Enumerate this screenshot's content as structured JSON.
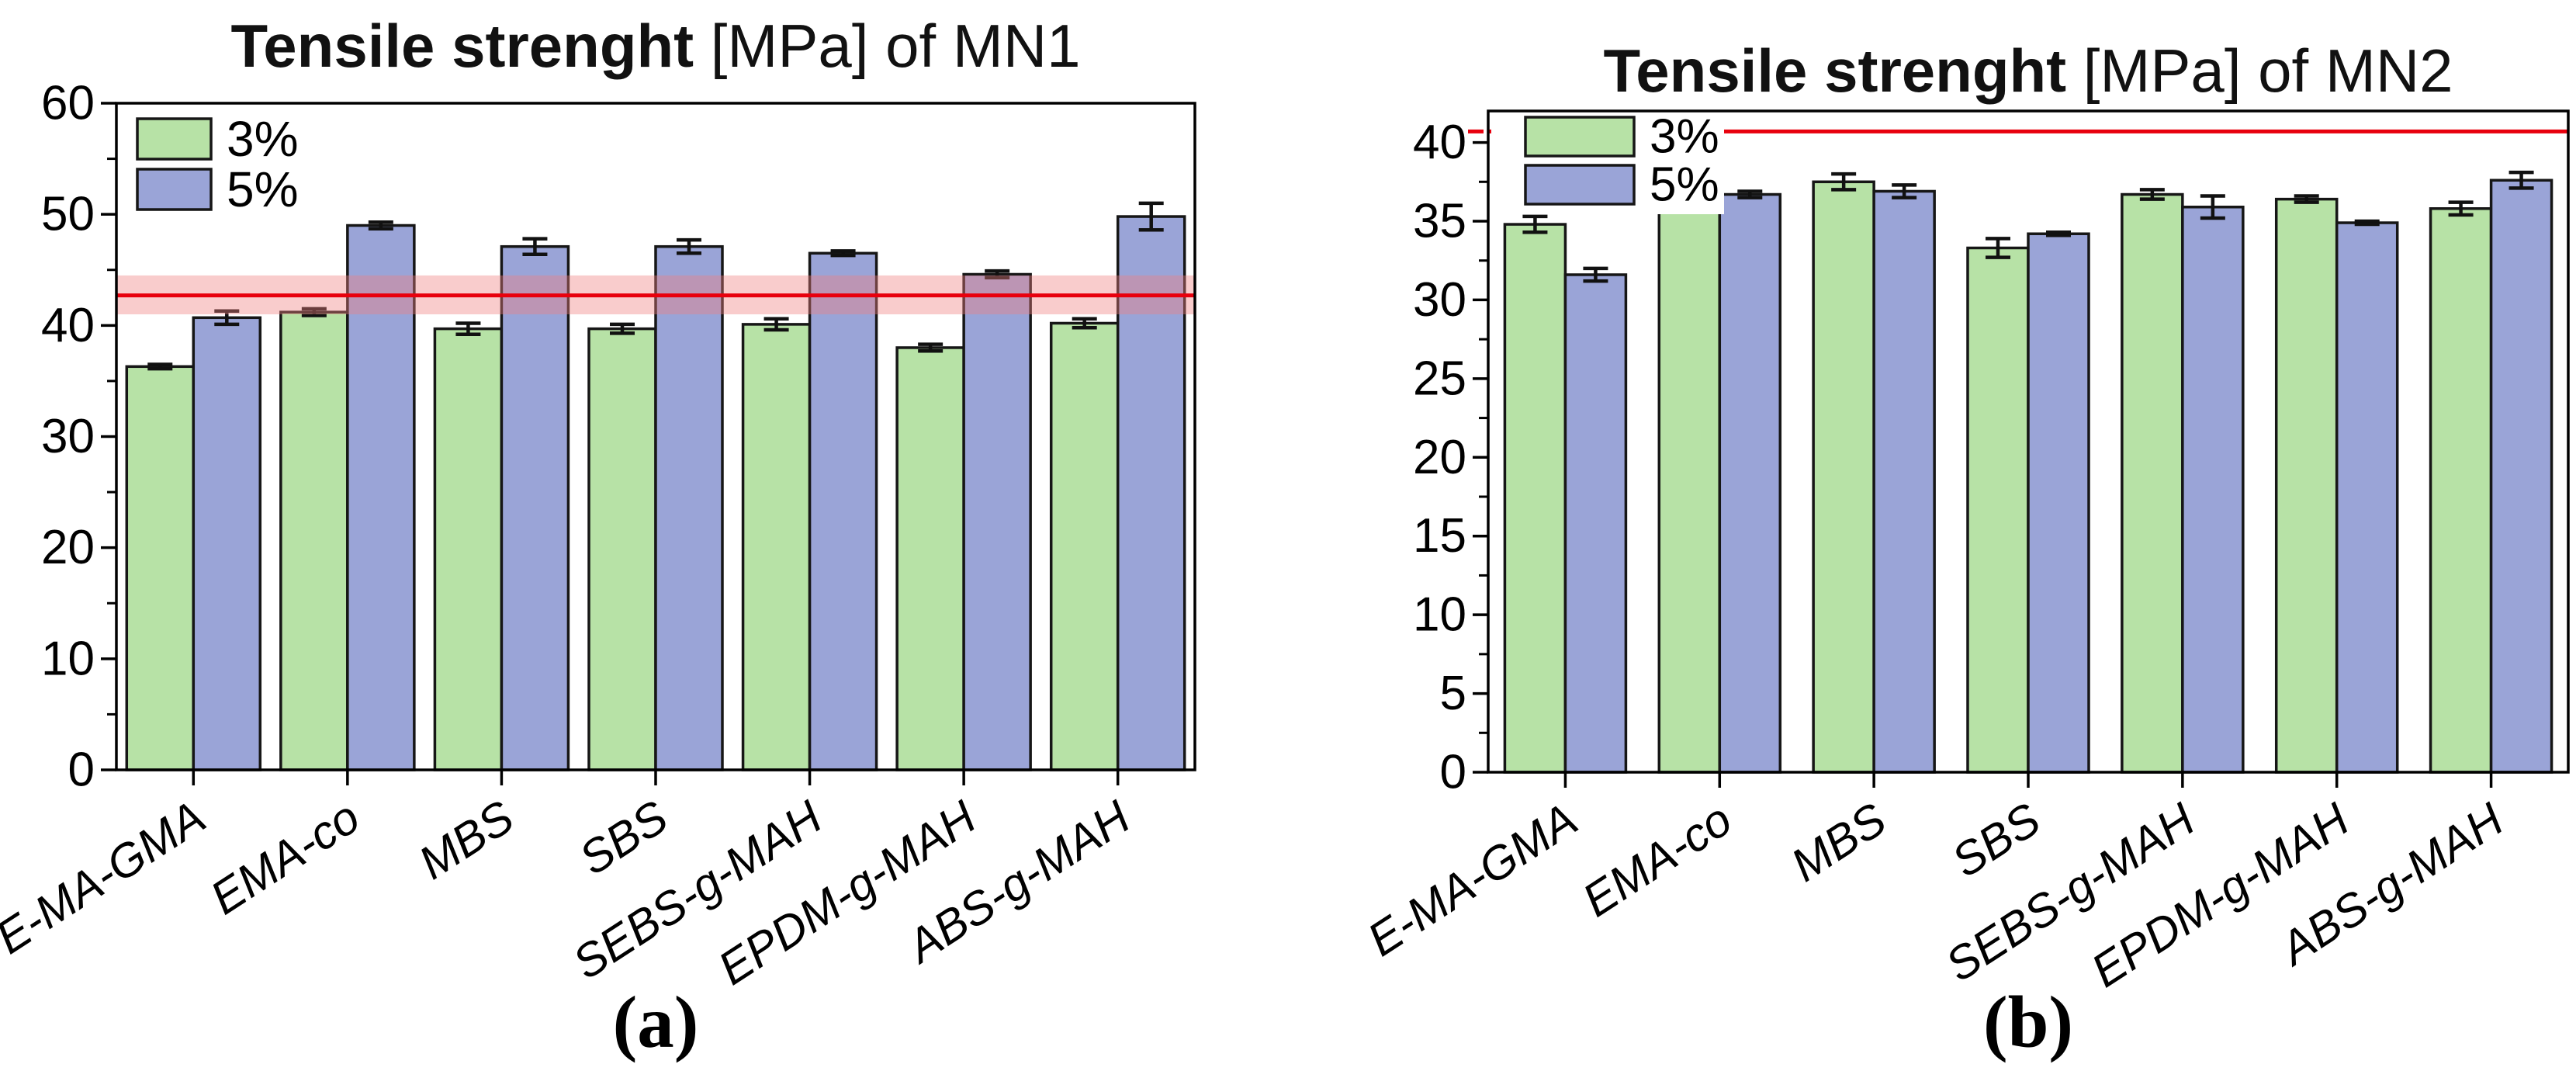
{
  "colors": {
    "bar_fills": [
      "#b7e2a6",
      "#9aa4d7"
    ],
    "bar_border": "#161616",
    "error_bar": "#111111",
    "ref_line": "#e8000d",
    "ref_band": "rgba(240,128,128,0.40)",
    "axis": "#000000",
    "text": "#000000",
    "background": "#ffffff"
  },
  "chart_data": [
    {
      "id": "a",
      "type": "bar",
      "title_bold": "Tensile strenght",
      "title_regular": " [MPa] of MN1",
      "caption": "(a)",
      "categories": [
        "E-MA-GMA",
        "EMA-co",
        "MBS",
        "SBS",
        "SEBS-g-MAH",
        "EPDM-g-MAH",
        "ABS-g-MAH"
      ],
      "series": [
        {
          "name": "3%",
          "values": [
            36.3,
            41.2,
            39.7,
            39.7,
            40.1,
            38.0,
            40.2
          ],
          "errors": [
            0.2,
            0.3,
            0.5,
            0.4,
            0.5,
            0.3,
            0.4
          ]
        },
        {
          "name": "5%",
          "values": [
            40.7,
            49.0,
            47.1,
            47.1,
            46.5,
            44.6,
            49.8
          ],
          "errors": [
            0.6,
            0.3,
            0.7,
            0.6,
            0.2,
            0.3,
            1.2
          ]
        }
      ],
      "ylim": [
        0,
        60
      ],
      "yticks": [
        0,
        10,
        20,
        30,
        40,
        50,
        60
      ],
      "minor_step": 5,
      "ref_line": {
        "value": 42.7,
        "band": [
          41.0,
          44.5
        ],
        "outside_dash": false
      },
      "legend": [
        "3%",
        "5%"
      ],
      "legend_position": "top-left",
      "grid": false
    },
    {
      "id": "b",
      "type": "bar",
      "title_bold": "Tensile strenght",
      "title_regular": " [MPa] of MN2",
      "caption": "(b)",
      "categories": [
        "E-MA-GMA",
        "EMA-co",
        "MBS",
        "SBS",
        "SEBS-g-MAH",
        "EPDM-g-MAH",
        "ABS-g-MAH"
      ],
      "series": [
        {
          "name": "3%",
          "values": [
            34.8,
            37.1,
            37.5,
            33.3,
            36.7,
            36.4,
            35.8
          ],
          "errors": [
            0.5,
            0.15,
            0.5,
            0.6,
            0.3,
            0.2,
            0.4
          ]
        },
        {
          "name": "5%",
          "values": [
            31.6,
            36.7,
            36.9,
            34.2,
            35.9,
            34.9,
            37.6
          ],
          "errors": [
            0.4,
            0.2,
            0.4,
            0.1,
            0.7,
            0.1,
            0.5
          ]
        }
      ],
      "ylim": [
        0,
        42
      ],
      "yticks": [
        0,
        5,
        10,
        15,
        20,
        25,
        30,
        35,
        40
      ],
      "minor_step": 2.5,
      "ref_line": {
        "value": 40.7,
        "band": null,
        "outside_dash": true
      },
      "legend": [
        "3%",
        "5%"
      ],
      "legend_position": "top-left",
      "grid": false
    }
  ]
}
